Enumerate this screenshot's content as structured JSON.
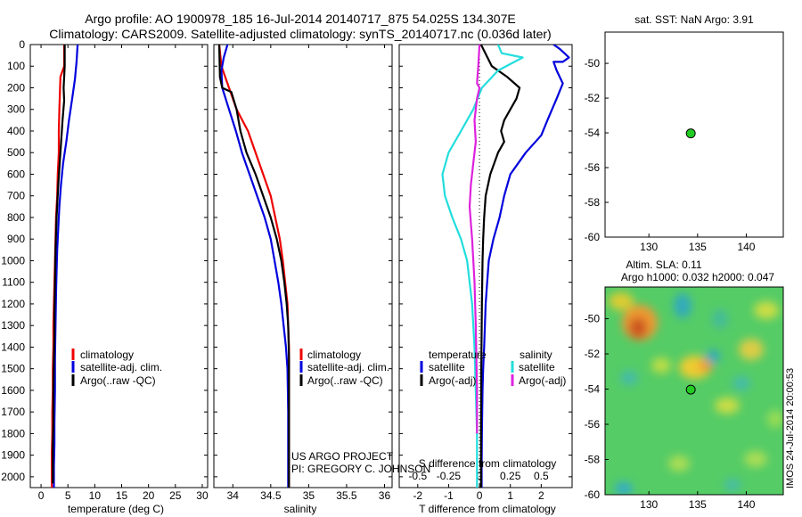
{
  "header": {
    "line1": "Argo profile: AO 1900978_185 16-Jul-2014 20140717_875 54.025S 134.307E",
    "line2": "Climatology: CARS2009. Satellite-adjusted climatology: synTS_20140717.nc (0.036d later)"
  },
  "colors": {
    "climatology": "#ee0000",
    "satellite": "#0000dd",
    "argo": "#000000",
    "cyan": "#22dddd",
    "magenta": "#dd22dd",
    "dot": "#22cc22"
  },
  "depth_ticks": [
    "0",
    "100",
    "200",
    "300",
    "400",
    "500",
    "600",
    "700",
    "800",
    "900",
    "1000",
    "1100",
    "1200",
    "1300",
    "1400",
    "1500",
    "1600",
    "1700",
    "1800",
    "1900",
    "2000"
  ],
  "credits": {
    "line1": "US ARGO PROJECT",
    "line2": "PI: GREGORY C. JOHNSON"
  },
  "stamp": "IMOS 24-Jul-2014 20:00:53",
  "chart_data": [
    {
      "type": "line",
      "xlabel": "temperature (deg C)",
      "ylabel": "",
      "xlim": [
        -2,
        31
      ],
      "ylim": [
        2050,
        0
      ],
      "xticks": [
        "0",
        "5",
        "10",
        "15",
        "20",
        "25",
        "30"
      ],
      "legend": [
        "climatology",
        "satellite-adj. clim.",
        "Argo(..raw -QC)"
      ],
      "series": [
        {
          "name": "climatology",
          "x": [
            4.3,
            4.3,
            3.6,
            3.4,
            3.3,
            3.3,
            3.1,
            3.0,
            2.8,
            2.7,
            2.6,
            2.5,
            2.4,
            2.3,
            2.3,
            2.2,
            2.2,
            2.1,
            2.1,
            2.0,
            2.0
          ],
          "y": [
            0,
            100,
            150,
            300,
            400,
            500,
            600,
            700,
            800,
            900,
            1000,
            1100,
            1200,
            1300,
            1400,
            1500,
            1600,
            1700,
            1800,
            1900,
            2050
          ]
        },
        {
          "name": "satellite-adj. clim.",
          "x": [
            6.8,
            6.6,
            6.3,
            5.8,
            5.2,
            4.7,
            4.1,
            3.7,
            3.4,
            3.2,
            3.0,
            2.9,
            2.8,
            2.7,
            2.6,
            2.6,
            2.5,
            2.5,
            2.4,
            2.4
          ],
          "y": [
            0,
            80,
            160,
            250,
            350,
            450,
            550,
            650,
            750,
            850,
            950,
            1050,
            1150,
            1300,
            1450,
            1600,
            1750,
            1850,
            1950,
            2050
          ]
        },
        {
          "name": "Argo(..raw -QC)",
          "x": [
            4.4,
            4.4,
            4.3,
            4.2,
            4.3,
            4.0,
            3.6,
            3.2,
            2.9,
            2.7,
            2.6,
            2.5,
            2.5,
            2.4,
            2.3,
            2.3,
            2.2,
            2.2,
            2.2
          ],
          "y": [
            0,
            100,
            150,
            200,
            260,
            350,
            500,
            650,
            800,
            950,
            1100,
            1250,
            1350,
            1450,
            1600,
            1750,
            1850,
            1950,
            2030
          ]
        }
      ]
    },
    {
      "type": "line",
      "xlabel": "salinity",
      "ylabel": "",
      "xlim": [
        33.75,
        36.1
      ],
      "ylim": [
        2050,
        0
      ],
      "xticks": [
        "34",
        "34.5",
        "35",
        "35.5",
        "36"
      ],
      "legend": [
        "climatology",
        "satellite-adj. clim.",
        "Argo(..raw -QC)"
      ],
      "series": [
        {
          "name": "climatology",
          "x": [
            33.82,
            33.85,
            33.95,
            34.05,
            34.2,
            34.3,
            34.4,
            34.5,
            34.56,
            34.62,
            34.66,
            34.69,
            34.72,
            34.73,
            34.74,
            34.74,
            34.74,
            34.74,
            34.74
          ],
          "y": [
            0,
            100,
            200,
            300,
            400,
            500,
            600,
            700,
            800,
            900,
            1000,
            1100,
            1200,
            1300,
            1400,
            1500,
            1600,
            1800,
            2050
          ]
        },
        {
          "name": "satellite-adj. clim.",
          "x": [
            33.93,
            33.88,
            33.85,
            33.86,
            33.95,
            34.04,
            34.12,
            34.22,
            34.32,
            34.42,
            34.5,
            34.55,
            34.6,
            34.64,
            34.67,
            34.7,
            34.72,
            34.73,
            34.73
          ],
          "y": [
            0,
            60,
            120,
            200,
            300,
            400,
            500,
            600,
            700,
            800,
            900,
            1000,
            1100,
            1200,
            1300,
            1400,
            1500,
            1700,
            2050
          ]
        },
        {
          "name": "Argo(..raw -QC)",
          "x": [
            33.82,
            33.83,
            33.86,
            33.98,
            34.05,
            34.1,
            34.18,
            34.3,
            34.4,
            34.5,
            34.58,
            34.64,
            34.68,
            34.71,
            34.73,
            34.74,
            34.74
          ],
          "y": [
            0,
            150,
            200,
            220,
            300,
            400,
            500,
            600,
            700,
            800,
            900,
            1000,
            1100,
            1200,
            1300,
            1450,
            2050
          ]
        }
      ]
    },
    {
      "type": "line",
      "xlabel": "T difference from climatology",
      "x2label": "S difference from climatology",
      "ylabel": "",
      "xlim": [
        -2.6,
        3.0
      ],
      "x2lim": [
        -0.65,
        0.75
      ],
      "ylim": [
        2050,
        0
      ],
      "xticks": [
        "-2",
        "-1",
        "0",
        "1",
        "2"
      ],
      "x2ticks": [
        "-0.5",
        "-0.25",
        "0",
        "0.25",
        "0.5"
      ],
      "legend_headers": [
        "temperature",
        "salinity"
      ],
      "legend": [
        "satellite",
        "Argo(-adj)",
        "satellite",
        "Argo(-adj)"
      ],
      "series": [
        {
          "name": "temperature satellite",
          "axis": "T",
          "x": [
            2.4,
            2.6,
            2.9,
            2.7,
            2.4,
            2.5,
            2.7,
            2.5,
            2.2,
            2.0,
            1.5,
            1.2,
            1.0,
            0.8,
            0.65,
            0.45,
            0.3,
            0.25,
            0.2,
            0.15,
            0.12,
            0.1,
            0.08,
            0.07,
            0.07
          ],
          "y": [
            0,
            20,
            60,
            80,
            80,
            120,
            180,
            250,
            350,
            420,
            500,
            560,
            600,
            700,
            800,
            900,
            1000,
            1100,
            1200,
            1400,
            1500,
            1600,
            1800,
            1950,
            2050
          ]
        },
        {
          "name": "temperature Argo(-adj)",
          "axis": "T",
          "x": [
            0.05,
            0.4,
            0.9,
            1.3,
            1.2,
            1.0,
            0.8,
            0.7,
            0.8,
            0.6,
            0.35,
            0.2,
            0.15,
            0.12,
            0.1,
            0.08,
            0.06,
            0.05,
            0.05
          ],
          "y": [
            0,
            100,
            150,
            200,
            250,
            300,
            350,
            400,
            450,
            500,
            600,
            700,
            800,
            900,
            1000,
            1200,
            1500,
            1800,
            2050
          ]
        },
        {
          "name": "salinity satellite",
          "axis": "S",
          "x": [
            0.15,
            0.18,
            0.35,
            0.15,
            0.02,
            -0.05,
            -0.15,
            -0.25,
            -0.3,
            -0.28,
            -0.22,
            -0.15,
            -0.1,
            -0.06,
            -0.04,
            -0.03,
            -0.02,
            -0.02
          ],
          "y": [
            0,
            40,
            60,
            120,
            200,
            300,
            400,
            500,
            600,
            700,
            800,
            900,
            1000,
            1200,
            1400,
            1600,
            1800,
            2050
          ]
        },
        {
          "name": "salinity Argo(-adj)",
          "axis": "S",
          "x": [
            0.0,
            -0.01,
            -0.02,
            0.0,
            -0.02,
            -0.04,
            -0.03,
            -0.05,
            -0.07,
            -0.08,
            -0.06,
            -0.04,
            -0.03,
            -0.02,
            -0.02
          ],
          "y": [
            0,
            100,
            180,
            200,
            250,
            350,
            450,
            550,
            650,
            750,
            900,
            1100,
            1300,
            1600,
            1800
          ]
        }
      ]
    },
    {
      "type": "scatter",
      "title": "sat. SST: NaN Argo: 3.91",
      "xlim": [
        125.5,
        143.8
      ],
      "ylim": [
        -60,
        -48.2
      ],
      "xticks": [
        "130",
        "135",
        "140"
      ],
      "yticks": [
        "-50",
        "-52",
        "-54",
        "-56",
        "-58",
        "-60"
      ],
      "points": [
        {
          "x": 134.3,
          "y": -54.03
        }
      ]
    },
    {
      "type": "heatmap",
      "title": "Altim. SLA: 0.11",
      "subtitle": "Argo h1000: 0.032 h2000: 0.047",
      "xlim": [
        125.5,
        143.8
      ],
      "ylim": [
        -60,
        -48.2
      ],
      "xticks": [
        "130",
        "135",
        "140"
      ],
      "yticks": [
        "-50",
        "-52",
        "-54",
        "-56",
        "-58",
        "-60"
      ],
      "points": [
        {
          "x": 134.3,
          "y": -54.03
        }
      ]
    }
  ]
}
